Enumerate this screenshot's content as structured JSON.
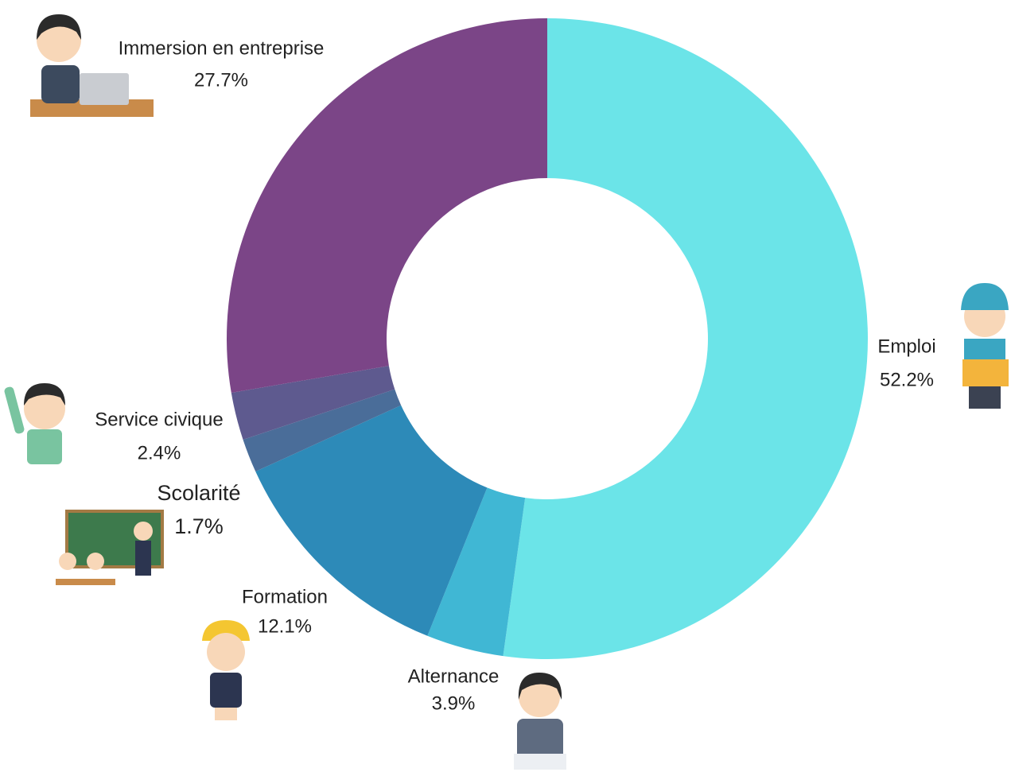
{
  "chart_data": {
    "type": "donut",
    "categories": [
      "Emploi",
      "Alternance",
      "Formation",
      "Scolarité",
      "Service civique",
      "Immersion en entreprise"
    ],
    "values": [
      52.2,
      3.9,
      12.1,
      1.7,
      2.4,
      27.7
    ],
    "value_labels": [
      "52.2%",
      "3.9%",
      "12.1%",
      "1.7%",
      "2.4%",
      "27.7%"
    ],
    "colors": [
      "#6be4e8",
      "#40b7d4",
      "#2d8ab8",
      "#4a6d99",
      "#5e5a8f",
      "#7b4587"
    ]
  }
}
